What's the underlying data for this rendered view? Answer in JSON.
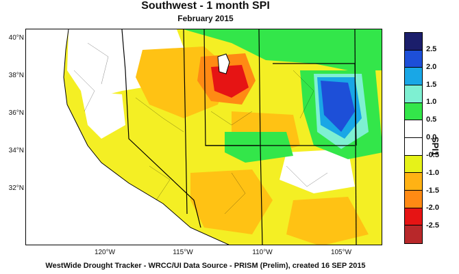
{
  "title": "Southwest - 1 month SPI",
  "subtitle": "February 2015",
  "footer": "WestWide Drought Tracker - WRCC/UI  Data Source - PRISM (Prelim), created 16 SEP 2015",
  "lat_labels": [
    "40°N",
    "38°N",
    "36°N",
    "34°N",
    "32°N"
  ],
  "lon_labels": [
    "120°W",
    "115°W",
    "110°W",
    "105°W"
  ],
  "legend": {
    "title": "SPI1",
    "ticks": [
      "2.5",
      "2.0",
      "1.5",
      "1.0",
      "0.5",
      "0.0",
      "-0.5",
      "-1.0",
      "-1.5",
      "-2.0",
      "-2.5"
    ],
    "colors": [
      "#1b1e6b",
      "#1d4fd8",
      "#19a7e6",
      "#7ef0d2",
      "#33e64a",
      "#ffffff",
      "#ffffff",
      "#e6f219",
      "#ffb214",
      "#ff8a14",
      "#e61414",
      "#b8282a"
    ]
  }
}
